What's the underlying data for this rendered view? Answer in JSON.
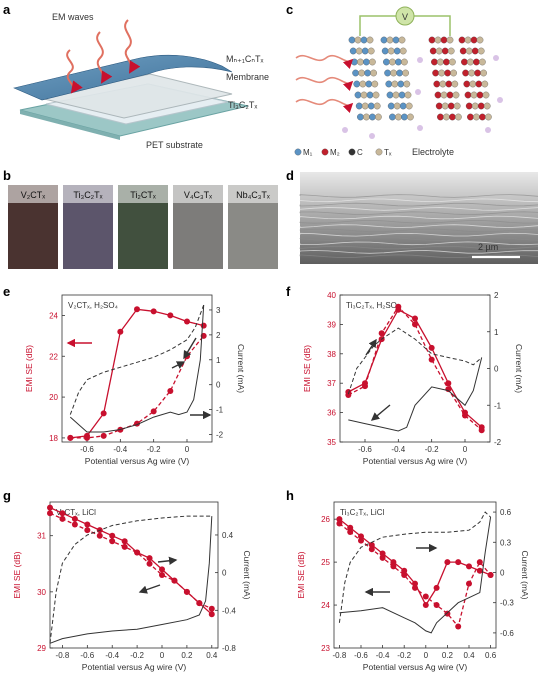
{
  "panel_letters": [
    "a",
    "b",
    "c",
    "d",
    "e",
    "f",
    "g",
    "h"
  ],
  "panel_a": {
    "labels": [
      "EM waves",
      "Mₙ₊₁CₙTₓ",
      "Membrane",
      "Ti₃C₂Tₓ",
      "PET substrate"
    ]
  },
  "panel_b": {
    "swatches": [
      {
        "label": "V₂CTₓ",
        "color": "#4a3330"
      },
      {
        "label": "Ti₃C₂Tₓ",
        "color": "#5c556b"
      },
      {
        "label": "Ti₂CTₓ",
        "color": "#41503e"
      },
      {
        "label": "V₄C₃Tₓ",
        "color": "#7d7c7a"
      },
      {
        "label": "Nb₄C₃Tₓ",
        "color": "#8a8a86"
      }
    ]
  },
  "panel_c": {
    "voltage_symbol": "V",
    "legend": [
      "M₁",
      "M₂",
      "C",
      "Tₓ"
    ],
    "legend_colors": [
      "#5b93c4",
      "#c0202c",
      "#333333",
      "#c8b89a"
    ],
    "electrolyte_label": "Electrolyte"
  },
  "panel_d": {
    "scale_bar": "2 µm"
  },
  "colors": {
    "red": "#c8102e",
    "dark": "#333333"
  },
  "chart_data": [
    {
      "panel": "e",
      "type": "line",
      "annotation": "V₂CTₓ, H₂SO₄",
      "xlabel": "Potential versus Ag wire (V)",
      "ylabel": "EMI SE (dB)",
      "y2label": "Current (mA)",
      "xlim": [
        -0.75,
        0.15
      ],
      "xticks": [
        -0.6,
        -0.4,
        -0.2,
        0
      ],
      "ylim": [
        17.8,
        25
      ],
      "yticks": [
        18,
        20,
        22,
        24
      ],
      "y2lim": [
        -2.3,
        3.6
      ],
      "y2ticks": [
        -2,
        -1,
        0,
        1,
        2,
        3
      ],
      "series": [
        {
          "style": "solid-red",
          "x": [
            -0.7,
            -0.6,
            -0.5,
            -0.4,
            -0.3,
            -0.2,
            -0.1,
            0,
            0.1
          ],
          "y": [
            18.0,
            18.1,
            19.2,
            23.2,
            24.3,
            24.2,
            24.0,
            23.7,
            23.5
          ]
        },
        {
          "style": "dashed-red",
          "x": [
            -0.7,
            -0.6,
            -0.5,
            -0.4,
            -0.3,
            -0.2,
            -0.1,
            0,
            0.1
          ],
          "y": [
            18.0,
            18.0,
            18.1,
            18.4,
            18.7,
            19.3,
            20.3,
            22.0,
            23.0
          ]
        },
        {
          "style": "dashed-dark",
          "x": [
            -0.7,
            -0.65,
            -0.6,
            -0.5,
            -0.4,
            -0.3,
            -0.2,
            -0.1,
            0,
            0.05,
            0.1
          ],
          "y": [
            -1.2,
            -0.3,
            0.2,
            0.5,
            0.7,
            0.9,
            1.1,
            1.4,
            1.8,
            2.3,
            3.2
          ]
        },
        {
          "style": "solid-dark",
          "x": [
            0.1,
            0.08,
            0.04,
            0,
            -0.05,
            -0.1,
            -0.2,
            -0.3,
            -0.4,
            -0.5,
            -0.6,
            -0.65,
            -0.7
          ],
          "y": [
            3.2,
            1.0,
            -0.6,
            -1.1,
            -1.2,
            -1.1,
            -1.3,
            -1.6,
            -1.8,
            -1.9,
            -1.9,
            -1.6,
            -1.3
          ]
        }
      ]
    },
    {
      "panel": "f",
      "type": "line",
      "annotation": "Ti₃C₂Tₓ, H₂SO₄",
      "xlabel": "Potential versus Ag wire (V)",
      "ylabel": "EMI SE (dB)",
      "y2label": "Current (mA)",
      "xlim": [
        -0.75,
        0.15
      ],
      "xticks": [
        -0.6,
        -0.4,
        -0.2,
        0
      ],
      "ylim": [
        35,
        40
      ],
      "yticks": [
        35,
        36,
        37,
        38,
        39,
        40
      ],
      "y2lim": [
        -2,
        2
      ],
      "y2ticks": [
        -2,
        -1,
        0,
        1,
        2
      ],
      "series": [
        {
          "style": "solid-red",
          "x": [
            -0.7,
            -0.6,
            -0.5,
            -0.4,
            -0.3,
            -0.2,
            -0.1,
            0,
            0.1
          ],
          "y": [
            36.7,
            37.0,
            38.5,
            39.5,
            39.2,
            38.2,
            37.0,
            36.0,
            35.5
          ]
        },
        {
          "style": "dashed-red",
          "x": [
            -0.7,
            -0.6,
            -0.5,
            -0.4,
            -0.3,
            -0.2,
            -0.1,
            0,
            0.1
          ],
          "y": [
            36.6,
            36.9,
            38.7,
            39.6,
            39.0,
            37.8,
            36.8,
            35.9,
            35.4
          ]
        },
        {
          "style": "dashed-dark",
          "x": [
            -0.7,
            -0.65,
            -0.6,
            -0.55,
            -0.5,
            -0.4,
            -0.3,
            -0.2,
            -0.1,
            0,
            0.05,
            0.1
          ],
          "y": [
            -0.7,
            0.0,
            0.3,
            0.6,
            0.8,
            1.1,
            0.8,
            0.4,
            0.3,
            0.2,
            0.1,
            0.3
          ]
        },
        {
          "style": "solid-dark",
          "x": [
            0.1,
            0.05,
            0,
            -0.1,
            -0.2,
            -0.3,
            -0.35,
            -0.4,
            -0.5,
            -0.6,
            -0.7
          ],
          "y": [
            0.3,
            -0.6,
            -1.0,
            -0.6,
            -0.5,
            -1.0,
            -1.6,
            -1.7,
            -1.6,
            -1.5,
            -1.4
          ]
        }
      ]
    },
    {
      "panel": "g",
      "type": "line",
      "annotation": "V₂CTₓ, LiCl",
      "xlabel": "Potential versus Ag wire (V)",
      "ylabel": "EMI SE (dB)",
      "y2label": "Current (mA)",
      "xlim": [
        -0.9,
        0.45
      ],
      "xticks": [
        -0.8,
        -0.6,
        -0.4,
        -0.2,
        0,
        0.2,
        0.4
      ],
      "ylim": [
        29,
        31.6
      ],
      "yticks": [
        29,
        30,
        31
      ],
      "y2lim": [
        -0.8,
        0.75
      ],
      "y2ticks": [
        -0.8,
        -0.4,
        0,
        0.4
      ],
      "series": [
        {
          "style": "solid-red",
          "x": [
            -0.9,
            -0.8,
            -0.7,
            -0.6,
            -0.5,
            -0.4,
            -0.3,
            -0.2,
            -0.1,
            0,
            0.1,
            0.2,
            0.3,
            0.4
          ],
          "y": [
            31.5,
            31.4,
            31.3,
            31.2,
            31.1,
            31.0,
            30.9,
            30.7,
            30.6,
            30.4,
            30.2,
            30.0,
            29.8,
            29.6
          ]
        },
        {
          "style": "dashed-red",
          "x": [
            -0.9,
            -0.8,
            -0.7,
            -0.6,
            -0.5,
            -0.4,
            -0.3,
            -0.2,
            -0.1,
            0,
            0.1,
            0.2,
            0.3,
            0.4
          ],
          "y": [
            31.4,
            31.3,
            31.2,
            31.1,
            31.0,
            30.9,
            30.8,
            30.7,
            30.5,
            30.3,
            30.2,
            30.0,
            29.8,
            29.7
          ]
        },
        {
          "style": "dashed-dark",
          "x": [
            -0.9,
            -0.85,
            -0.8,
            -0.7,
            -0.6,
            -0.5,
            -0.4,
            -0.2,
            0,
            0.2,
            0.4
          ],
          "y": [
            -0.75,
            -0.2,
            0.1,
            0.3,
            0.4,
            0.45,
            0.5,
            0.55,
            0.58,
            0.6,
            0.6
          ]
        },
        {
          "style": "solid-dark",
          "x": [
            0.4,
            0.38,
            0.35,
            0.3,
            0.2,
            0,
            -0.2,
            -0.4,
            -0.6,
            -0.8,
            -0.9
          ],
          "y": [
            0.6,
            0.1,
            -0.3,
            -0.45,
            -0.5,
            -0.55,
            -0.6,
            -0.62,
            -0.65,
            -0.7,
            -0.75
          ]
        }
      ]
    },
    {
      "panel": "h",
      "type": "line",
      "annotation": "Ti₃C₂Tₓ, LiCl",
      "xlabel": "Potential versus Ag wire (V)",
      "ylabel": "EMI SE (dB)",
      "y2label": "Current (mA)",
      "xlim": [
        -0.85,
        0.65
      ],
      "xticks": [
        -0.8,
        -0.6,
        -0.4,
        -0.2,
        0,
        0.2,
        0.4,
        0.6
      ],
      "ylim": [
        23,
        26.4
      ],
      "yticks": [
        23,
        24,
        25,
        26
      ],
      "y2lim": [
        -0.75,
        0.7
      ],
      "y2ticks": [
        -0.6,
        -0.3,
        0,
        0.3,
        0.6
      ],
      "series": [
        {
          "style": "solid-red",
          "x": [
            -0.8,
            -0.7,
            -0.6,
            -0.5,
            -0.4,
            -0.3,
            -0.2,
            -0.1,
            0,
            0.1,
            0.2,
            0.3,
            0.4,
            0.5,
            0.6
          ],
          "y": [
            26.0,
            25.8,
            25.6,
            25.4,
            25.2,
            25.0,
            24.8,
            24.5,
            24.0,
            24.4,
            25.0,
            25.0,
            24.9,
            24.8,
            24.7
          ]
        },
        {
          "style": "dashed-red",
          "x": [
            -0.8,
            -0.7,
            -0.6,
            -0.5,
            -0.4,
            -0.3,
            -0.2,
            -0.1,
            0,
            0.1,
            0.2,
            0.3,
            0.4,
            0.5,
            0.6
          ],
          "y": [
            25.9,
            25.7,
            25.5,
            25.3,
            25.1,
            24.9,
            24.7,
            24.4,
            24.2,
            24.0,
            23.8,
            23.5,
            24.5,
            25.0,
            24.7
          ]
        },
        {
          "style": "dashed-dark",
          "x": [
            -0.8,
            -0.75,
            -0.7,
            -0.6,
            -0.4,
            -0.2,
            0,
            0.2,
            0.4,
            0.5,
            0.55,
            0.6
          ],
          "y": [
            -0.5,
            -0.1,
            0.1,
            0.25,
            0.35,
            0.38,
            0.4,
            0.4,
            0.42,
            0.5,
            0.6,
            0.55
          ]
        },
        {
          "style": "solid-dark",
          "x": [
            0.6,
            0.55,
            0.5,
            0.4,
            0.3,
            0.2,
            0.1,
            0.05,
            0,
            -0.1,
            -0.2,
            -0.4,
            -0.6,
            -0.8
          ],
          "y": [
            0.55,
            0.2,
            -0.2,
            -0.25,
            -0.3,
            -0.4,
            -0.5,
            -0.6,
            -0.58,
            -0.5,
            -0.45,
            -0.35,
            -0.38,
            -0.4
          ]
        }
      ]
    }
  ]
}
